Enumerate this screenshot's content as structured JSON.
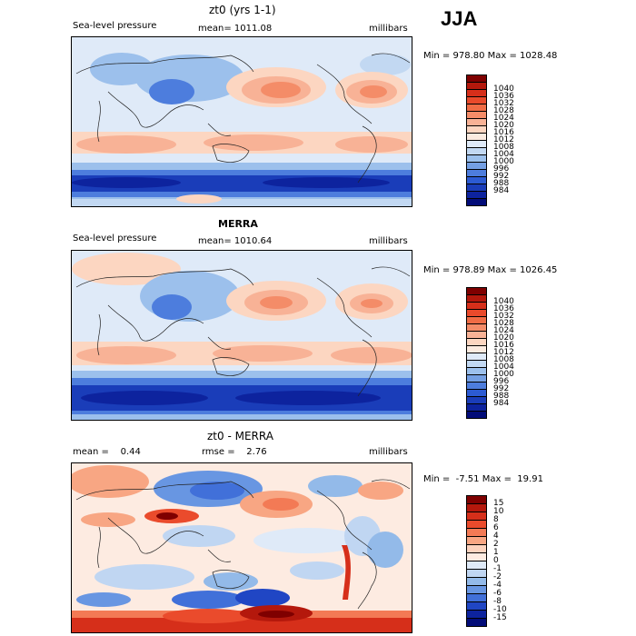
{
  "season": "JJA",
  "panels": [
    {
      "title": "zt0 (yrs 1-1)",
      "left_text": "Sea-level pressure",
      "center_text": "mean= 1011.08",
      "units": "millibars",
      "stats": "Min = 978.80 Max = 1028.48",
      "colorbar": {
        "colors": [
          "#7f0000",
          "#b4180c",
          "#d62f1a",
          "#e94a2b",
          "#f06c45",
          "#f48c68",
          "#f8b296",
          "#fcd6c1",
          "#fbebe0",
          "#dfeaf8",
          "#c2d8f2",
          "#9cc0ec",
          "#749fe3",
          "#4d7ddd",
          "#2c5bd3",
          "#1a3db9",
          "#0d239e",
          "#020c78"
        ],
        "labels": [
          "1040",
          "1036",
          "1032",
          "1028",
          "1024",
          "1020",
          "1016",
          "1012",
          "1008",
          "1004",
          "1000",
          "996",
          "992",
          "988",
          "984"
        ]
      }
    },
    {
      "title": "MERRA",
      "left_text": "Sea-level pressure",
      "center_text": "mean= 1010.64",
      "units": "millibars",
      "stats": "Min = 978.89 Max = 1026.45",
      "colorbar": {
        "colors": [
          "#7f0000",
          "#b4180c",
          "#d62f1a",
          "#e94a2b",
          "#f06c45",
          "#f48c68",
          "#f8b296",
          "#fcd6c1",
          "#fbebe0",
          "#dfeaf8",
          "#c2d8f2",
          "#9cc0ec",
          "#749fe3",
          "#4d7ddd",
          "#2c5bd3",
          "#1a3db9",
          "#0d239e",
          "#020c78"
        ],
        "labels": [
          "1040",
          "1036",
          "1032",
          "1028",
          "1024",
          "1020",
          "1016",
          "1012",
          "1008",
          "1004",
          "1000",
          "996",
          "992",
          "988",
          "984"
        ]
      }
    },
    {
      "title": "zt0 - MERRA",
      "left_text": "mean =    0.44",
      "center_text": "rmse =    2.76",
      "units": "millibars",
      "stats": "Min =  -7.51 Max =  19.91",
      "colorbar": {
        "colors": [
          "#7f0000",
          "#b4180c",
          "#d62f1a",
          "#ea4b2c",
          "#f37a55",
          "#f8a683",
          "#fcd3be",
          "#fdebe1",
          "#dfeaf8",
          "#c0d6f2",
          "#93bae9",
          "#6896e2",
          "#4170d9",
          "#2046c4",
          "#0d239e",
          "#020c78"
        ],
        "labels": [
          "15",
          "10",
          "8",
          "6",
          "4",
          "2",
          "1",
          "0",
          "-1",
          "-2",
          "-4",
          "-6",
          "-8",
          "-10",
          "-15"
        ]
      }
    }
  ]
}
